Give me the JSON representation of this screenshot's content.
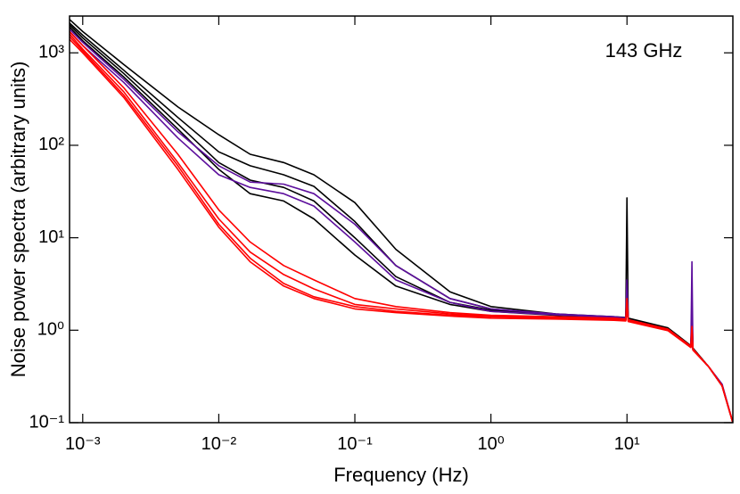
{
  "chart_data": {
    "type": "line",
    "annotation": "143 GHz",
    "xlabel": "Frequency (Hz)",
    "ylabel": "Noise power spectra (arbitrary units)",
    "log_x": true,
    "log_y": true,
    "xlim": [
      0.0008,
      60
    ],
    "ylim": [
      0.1,
      2500
    ],
    "xticks": [
      {
        "value": 0.001,
        "label": "10⁻³"
      },
      {
        "value": 0.01,
        "label": "10⁻²"
      },
      {
        "value": 0.1,
        "label": "10⁻¹"
      },
      {
        "value": 1,
        "label": "10⁰"
      },
      {
        "value": 10,
        "label": "10¹"
      }
    ],
    "yticks": [
      {
        "value": 0.1,
        "label": "10⁻¹"
      },
      {
        "value": 1,
        "label": "10⁰"
      },
      {
        "value": 10,
        "label": "10¹"
      },
      {
        "value": 100,
        "label": "10²"
      },
      {
        "value": 1000,
        "label": "10³"
      }
    ],
    "x": [
      0.0008,
      0.001,
      0.002,
      0.005,
      0.01,
      0.017,
      0.03,
      0.05,
      0.1,
      0.2,
      0.5,
      1,
      3,
      8,
      9.8,
      10,
      10.2,
      20,
      29.5,
      30,
      30.5,
      40,
      50,
      60
    ],
    "series": [
      {
        "color": "#000000",
        "values": [
          2300,
          1700,
          750,
          260,
          130,
          80,
          65,
          48,
          24,
          7.5,
          2.6,
          1.8,
          1.5,
          1.4,
          1.37,
          27,
          1.35,
          1.06,
          0.68,
          1.5,
          0.64,
          0.4,
          0.25,
          0.1
        ]
      },
      {
        "color": "#000000",
        "values": [
          2100,
          1550,
          650,
          200,
          85,
          60,
          48,
          36,
          15,
          5,
          2.2,
          1.7,
          1.48,
          1.39,
          1.36,
          3,
          1.34,
          1.05,
          0.68,
          1.4,
          0.64,
          0.4,
          0.25,
          0.1
        ]
      },
      {
        "color": "#000000",
        "values": [
          2000,
          1450,
          600,
          170,
          65,
          42,
          35,
          25,
          10,
          3.8,
          2.0,
          1.65,
          1.46,
          1.38,
          1.35,
          2.5,
          1.33,
          1.05,
          0.67,
          1.3,
          0.63,
          0.4,
          0.25,
          0.1
        ]
      },
      {
        "color": "#000000",
        "values": [
          1900,
          1350,
          550,
          150,
          55,
          30,
          25,
          16,
          6.5,
          3,
          1.9,
          1.6,
          1.45,
          1.37,
          1.34,
          2.2,
          1.32,
          1.04,
          0.67,
          1.2,
          0.63,
          0.4,
          0.25,
          0.1
        ]
      },
      {
        "color": "#5c0e9c",
        "values": [
          1800,
          1300,
          520,
          140,
          60,
          40,
          38,
          30,
          14,
          5,
          2.2,
          1.7,
          1.5,
          1.4,
          1.36,
          3.5,
          1.3,
          1.02,
          0.66,
          5.5,
          0.62,
          0.4,
          0.26,
          0.1
        ]
      },
      {
        "color": "#5c0e9c",
        "values": [
          1700,
          1200,
          480,
          120,
          48,
          35,
          30,
          22,
          9,
          3.5,
          2.0,
          1.6,
          1.47,
          1.38,
          1.34,
          2.8,
          1.3,
          1.02,
          0.66,
          2.0,
          0.62,
          0.4,
          0.26,
          0.1
        ]
      },
      {
        "color": "#ff0000",
        "values": [
          1700,
          1200,
          420,
          80,
          20,
          9,
          5,
          3.5,
          2.2,
          1.8,
          1.55,
          1.45,
          1.4,
          1.35,
          1.32,
          2.2,
          1.3,
          1.03,
          0.67,
          1.1,
          0.63,
          0.4,
          0.25,
          0.1
        ]
      },
      {
        "color": "#ff0000",
        "values": [
          1600,
          1100,
          380,
          65,
          16,
          7,
          4,
          2.8,
          1.9,
          1.7,
          1.5,
          1.42,
          1.38,
          1.33,
          1.3,
          2.0,
          1.28,
          1.02,
          0.66,
          1.05,
          0.62,
          0.4,
          0.25,
          0.1
        ]
      },
      {
        "color": "#ff0000",
        "values": [
          1500,
          1050,
          350,
          60,
          14,
          6,
          3.2,
          2.3,
          1.8,
          1.6,
          1.45,
          1.4,
          1.35,
          1.3,
          1.28,
          1.8,
          1.26,
          1.0,
          0.65,
          1.0,
          0.61,
          0.4,
          0.25,
          0.1
        ]
      },
      {
        "color": "#ff0000",
        "values": [
          1400,
          1000,
          330,
          55,
          13,
          5.5,
          3,
          2.2,
          1.7,
          1.55,
          1.42,
          1.35,
          1.32,
          1.28,
          1.26,
          1.7,
          1.24,
          0.99,
          0.65,
          0.95,
          0.61,
          0.4,
          0.25,
          0.1
        ]
      }
    ]
  }
}
